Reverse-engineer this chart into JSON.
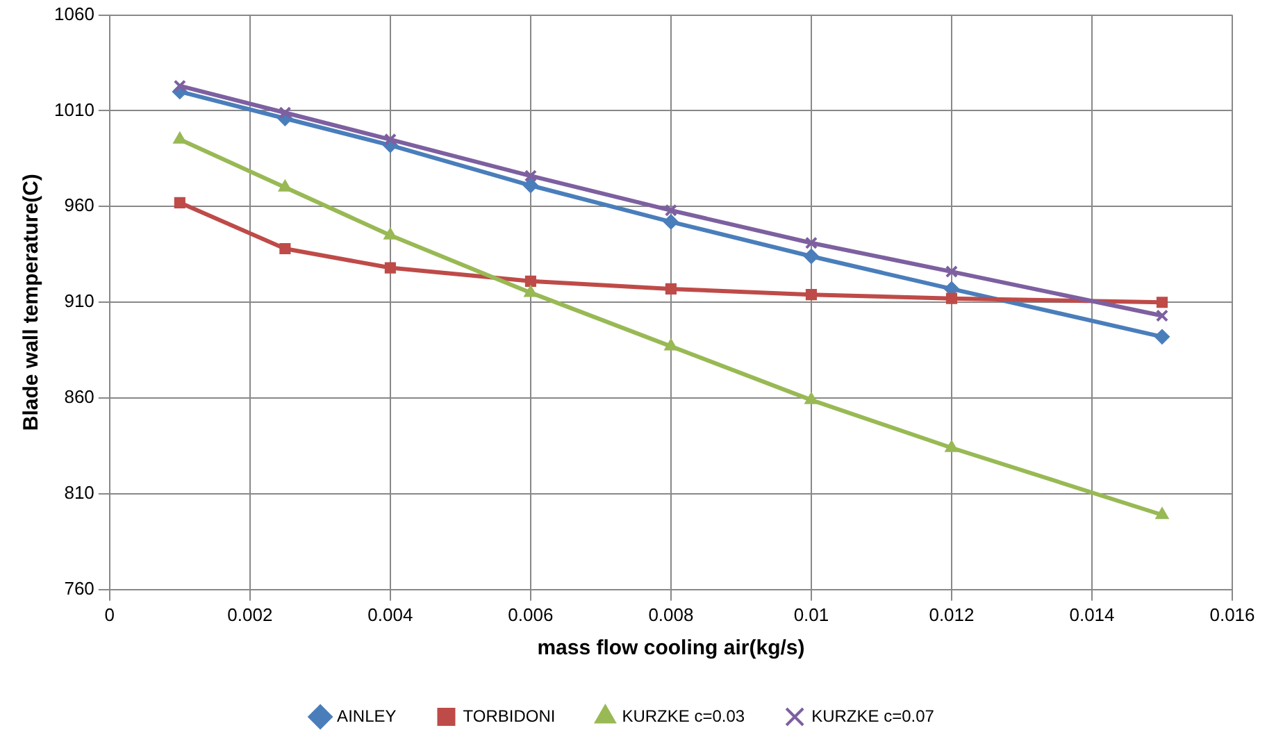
{
  "chart_data": {
    "type": "line",
    "xlabel": "mass flow cooling air(kg/s)",
    "ylabel": "Blade wall temperature(C)",
    "x": [
      0.001,
      0.0025,
      0.004,
      0.006,
      0.008,
      0.01,
      0.012,
      0.015
    ],
    "series": [
      {
        "name": "AINLEY",
        "color": "#4a7ebb",
        "marker": "diamond",
        "values": [
          1020,
          1006,
          992,
          971,
          952,
          934,
          917,
          892
        ]
      },
      {
        "name": "TORBIDONI",
        "color": "#be4b48",
        "marker": "square",
        "values": [
          962,
          938,
          928,
          921,
          917,
          914,
          912,
          910
        ]
      },
      {
        "name": "KURZKE c=0.03",
        "color": "#98b954",
        "marker": "triangle",
        "values": [
          995,
          970,
          945,
          915,
          887,
          859,
          834,
          799
        ]
      },
      {
        "name": "KURZKE c=0.07",
        "color": "#7d60a0",
        "marker": "cross",
        "values": [
          1023,
          1009,
          995,
          976,
          958,
          941,
          926,
          903
        ]
      }
    ],
    "xlim": [
      0,
      0.016
    ],
    "xticks": [
      0,
      0.002,
      0.004,
      0.006,
      0.008,
      0.01,
      0.012,
      0.014,
      0.016
    ],
    "ylim": [
      760,
      1060
    ],
    "yticks": [
      760,
      810,
      860,
      910,
      960,
      1010,
      1060
    ],
    "grid": true,
    "legend": "bottom",
    "line_style": "solid"
  }
}
